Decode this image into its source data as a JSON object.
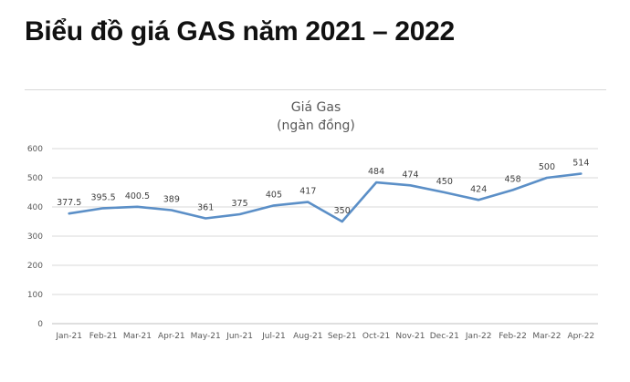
{
  "header": {
    "title": "Biểu đồ giá GAS năm 2021 – 2022"
  },
  "chart_data": {
    "type": "line",
    "title": "Giá Gas",
    "subtitle": "(ngàn đồng)",
    "xlabel": "",
    "ylabel": "",
    "categories": [
      "Jan-21",
      "Feb-21",
      "Mar-21",
      "Apr-21",
      "May-21",
      "Jun-21",
      "Jul-21",
      "Aug-21",
      "Sep-21",
      "Oct-21",
      "Nov-21",
      "Dec-21",
      "Jan-22",
      "Feb-22",
      "Mar-22",
      "Apr-22"
    ],
    "series": [
      {
        "values": [
          377.5,
          395.5,
          400.5,
          389,
          361,
          375,
          405,
          417,
          350,
          484,
          474,
          450,
          424,
          458,
          500,
          514
        ],
        "labels": [
          "377.5",
          "395.5",
          "400.5",
          "389",
          "361",
          "375",
          "405",
          "417",
          "350",
          "484",
          "474",
          "450",
          "424",
          "458",
          "500",
          "514"
        ],
        "color": "#5b8fc7"
      }
    ],
    "ylim": [
      0,
      600
    ],
    "yticks": [
      "0",
      "100",
      "200",
      "300",
      "400",
      "500",
      "600"
    ],
    "grid": true,
    "legend": "none"
  }
}
